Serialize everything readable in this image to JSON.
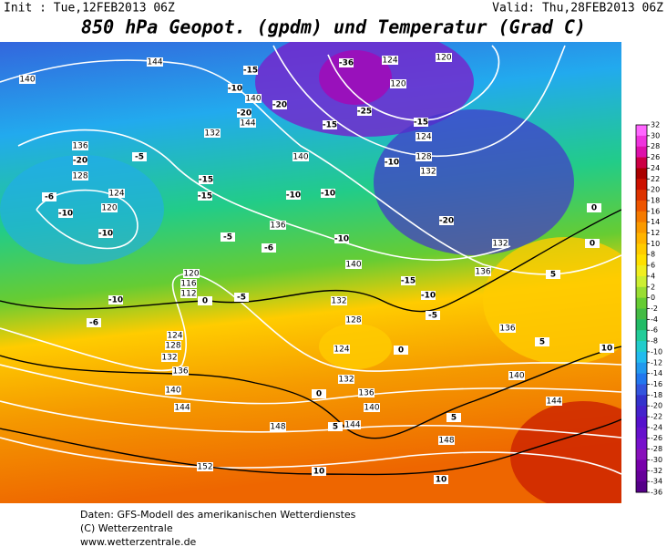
{
  "header": {
    "init": "Init : Tue,12FEB2013 06Z",
    "valid": "Valid: Thu,28FEB2013 06Z",
    "title": "850 hPa Geopot. (gpdm) und Temperatur (Grad C)"
  },
  "map": {
    "geopotential_labels": [
      144,
      140,
      124,
      120,
      120,
      136,
      128,
      124,
      120,
      132,
      140,
      144,
      124,
      128,
      132,
      140,
      136,
      140,
      136,
      132,
      132,
      128,
      124,
      120,
      116,
      112,
      124,
      128,
      132,
      136,
      140,
      144,
      148,
      152,
      132,
      136,
      140,
      144,
      148,
      140,
      144,
      136
    ],
    "temperature_labels": [
      -36,
      -15,
      -10,
      -20,
      -20,
      -25,
      -15,
      -15,
      -20,
      -5,
      -6,
      -10,
      -10,
      -15,
      -15,
      -10,
      -10,
      -10,
      -20,
      -5,
      -6,
      -10,
      -15,
      -10,
      -5,
      -10,
      -5,
      -6,
      0,
      0,
      5,
      0,
      0,
      5,
      5,
      10,
      10,
      5,
      10,
      0
    ]
  },
  "colorbar": {
    "levels": [
      32,
      30,
      28,
      26,
      24,
      22,
      20,
      18,
      16,
      14,
      12,
      10,
      8,
      6,
      4,
      2,
      0,
      -2,
      -4,
      -6,
      -8,
      -10,
      -12,
      -14,
      -16,
      -18,
      -20,
      -22,
      -24,
      -26,
      -28,
      -30,
      -32,
      -34,
      -36
    ],
    "colors": [
      "#ff66ff",
      "#ee33dd",
      "#dd11aa",
      "#cc0044",
      "#aa0000",
      "#cc1100",
      "#dd3300",
      "#ee5500",
      "#f57a00",
      "#fa9a00",
      "#ffb400",
      "#ffcc00",
      "#ffe000",
      "#f0ee20",
      "#ccee33",
      "#99dd33",
      "#66cc33",
      "#44bb44",
      "#22bb66",
      "#22cc99",
      "#22cccc",
      "#22bbee",
      "#2299ee",
      "#2277ee",
      "#3355dd",
      "#3333cc",
      "#4422cc",
      "#5511cc",
      "#6611cc",
      "#7711cc",
      "#8811bb",
      "#7700aa",
      "#660099",
      "#550088"
    ]
  },
  "footer": {
    "line1": "Daten: GFS-Modell des amerikanischen Wetterdienstes",
    "line2": "(C) Wetterzentrale",
    "line3": "www.wetterzentrale.de"
  }
}
